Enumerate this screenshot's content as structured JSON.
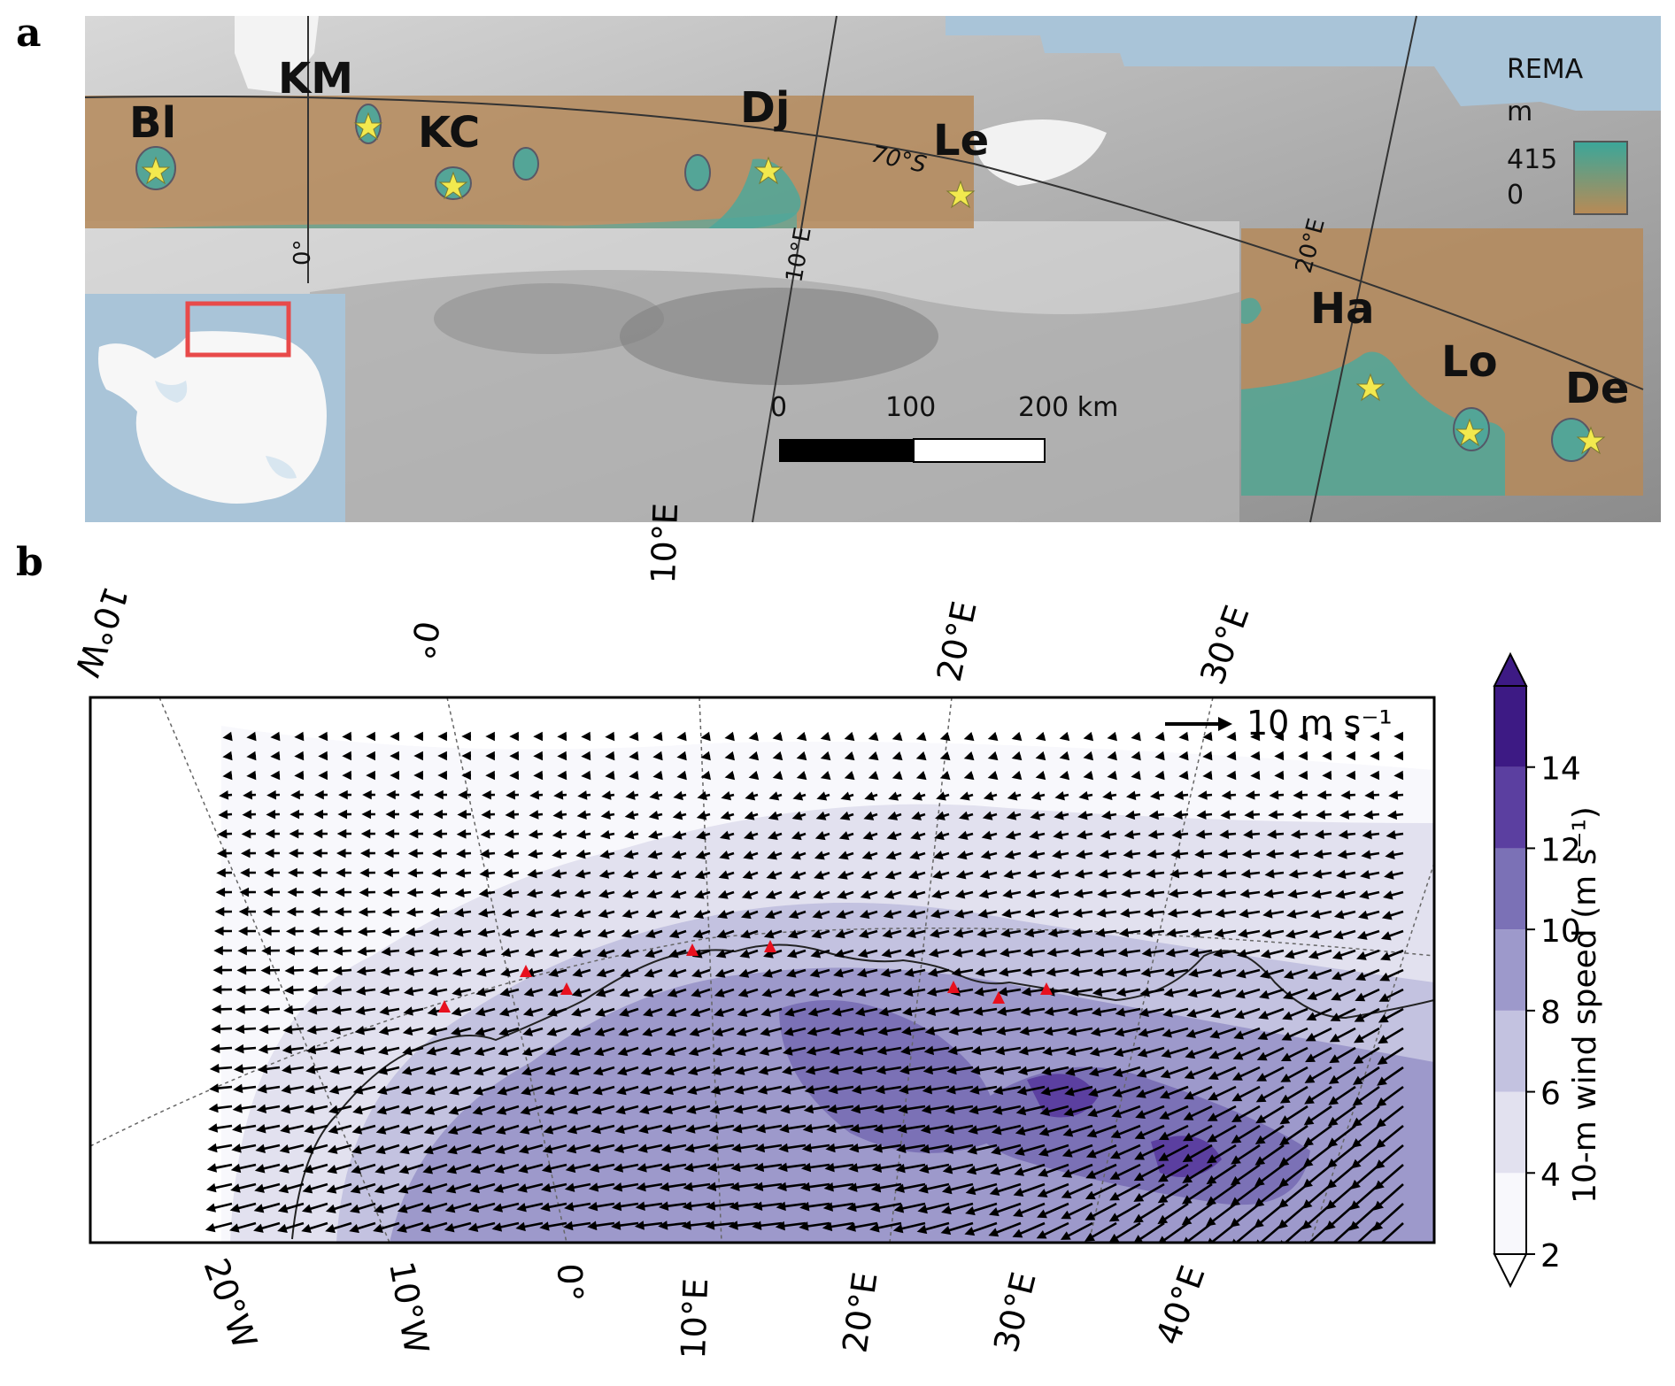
{
  "panel_a": {
    "letter": "a",
    "ice_shelves": [
      {
        "label": "Bl"
      },
      {
        "label": "KM"
      },
      {
        "label": "KC"
      },
      {
        "label": "Dj"
      },
      {
        "label": "Le"
      },
      {
        "label": "Ha"
      },
      {
        "label": "Lo"
      },
      {
        "label": "De"
      }
    ],
    "graticule_labels": [
      "0°",
      "10°E",
      "20°E",
      "70°S"
    ],
    "legend": {
      "title": "REMA",
      "unit": "m",
      "max": "415",
      "min": "0"
    },
    "scale_bar": {
      "labels": [
        "0",
        "100",
        "200 km"
      ]
    },
    "colors": {
      "ocean": "#a9c4d8",
      "shelf_overlay": "#b58a5c",
      "high_elev": "#4fa79a",
      "star": "#f2e94e",
      "inset_box": "#e84a4a"
    }
  },
  "panel_b": {
    "letter": "b",
    "top_lon_labels": [
      "10°W",
      "0°",
      "10°E",
      "20°E",
      "30°E"
    ],
    "bottom_lon_labels": [
      "20°W",
      "10°W",
      "0°",
      "10°E",
      "20°E",
      "30°E",
      "40°E"
    ],
    "reference_vector": {
      "label": "10 m s⁻¹"
    },
    "colorbar": {
      "label": "10-m wind speed (m s⁻¹)",
      "ticks": [
        "2",
        "4",
        "6",
        "8",
        "10",
        "12",
        "14"
      ],
      "colors": [
        "#f8f8fc",
        "#e2e1ef",
        "#c3c2e0",
        "#9d99cb",
        "#7b71b6",
        "#5b3fa0",
        "#3d1a84"
      ]
    },
    "station_markers_color": "#e8101e"
  }
}
